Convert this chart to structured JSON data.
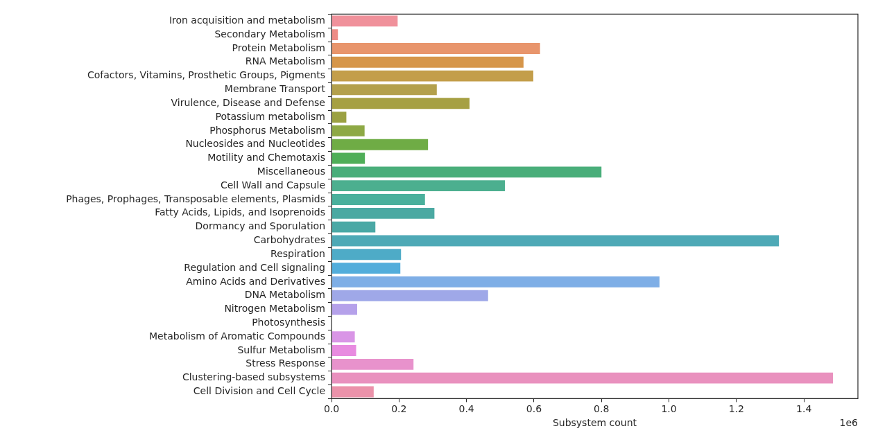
{
  "chart_data": {
    "type": "bar",
    "orientation": "horizontal",
    "xlabel": "Subsystem count",
    "annotations": [
      "1e6"
    ],
    "categories": [
      "Iron acquisition and metabolism",
      "Secondary Metabolism",
      "Protein Metabolism",
      "RNA Metabolism",
      "Cofactors, Vitamins, Prosthetic Groups, Pigments",
      "Membrane Transport",
      "Virulence, Disease and Defense",
      "Potassium metabolism",
      "Phosphorus Metabolism",
      "Nucleosides and Nucleotides",
      "Motility and Chemotaxis",
      "Miscellaneous",
      "Cell Wall and Capsule",
      "Phages, Prophages, Transposable elements, Plasmids",
      "Fatty Acids, Lipids, and Isoprenoids",
      "Dormancy and Sporulation",
      "Carbohydrates",
      "Respiration",
      "Regulation and Cell signaling",
      "Amino Acids and Derivatives",
      "DNA Metabolism",
      "Nitrogen Metabolism",
      "Photosynthesis",
      "Metabolism of Aromatic Compounds",
      "Sulfur Metabolism",
      "Stress Response",
      "Clustering-based subsystems",
      "Cell Division and Cell Cycle"
    ],
    "values": [
      0.196,
      0.019,
      0.618,
      0.569,
      0.598,
      0.312,
      0.409,
      0.044,
      0.098,
      0.286,
      0.099,
      0.8,
      0.514,
      0.277,
      0.305,
      0.13,
      1.326,
      0.206,
      0.204,
      0.972,
      0.464,
      0.076,
      0,
      0.069,
      0.073,
      0.243,
      1.486,
      0.125
    ],
    "colors": [
      "#f0919b",
      "#ee8c86",
      "#e8956c",
      "#d6964a",
      "#c39e4a",
      "#b3a04c",
      "#a6a043",
      "#9ba142",
      "#8ea945",
      "#6fac45",
      "#4fae58",
      "#49ae7a",
      "#4caf8f",
      "#4ab09c",
      "#4ba9a2",
      "#4aa8a5",
      "#4ea9b6",
      "#4eabc7",
      "#52addb",
      "#7eaee6",
      "#9fa8e8",
      "#b5a1ea",
      "#c99ce8",
      "#d995e6",
      "#e88be0",
      "#e892cc",
      "#e991be",
      "#eb92aa"
    ],
    "xlim": [
      0,
      1.56
    ],
    "xticks": [
      {
        "value": 0,
        "label": "0.0"
      },
      0.2,
      0.4,
      0.6,
      0.8,
      {
        "value": 1,
        "label": "1.0"
      },
      1.2,
      1.4
    ],
    "grid": false,
    "legend": false
  }
}
